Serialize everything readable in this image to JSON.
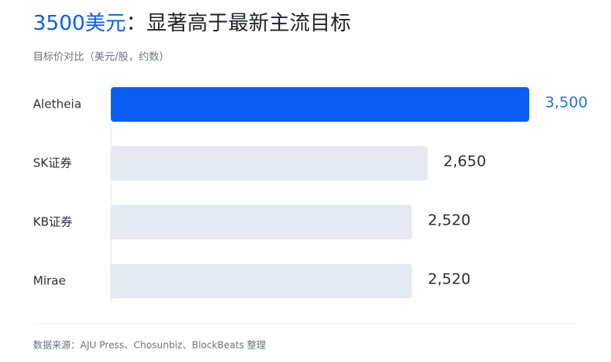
{
  "chart_data": {
    "type": "bar",
    "orientation": "horizontal",
    "title_highlight": "3500美元",
    "title": "：显著高于最新主流目标",
    "subtitle": "目标价对比（美元/股，约数）",
    "categories": [
      "Aletheia",
      "SK证券",
      "KB证券",
      "Mirae"
    ],
    "values": [
      3500,
      2650,
      2520,
      2520
    ],
    "value_labels": [
      "3,500",
      "2,650",
      "2,520",
      "2,520"
    ],
    "colors": [
      "#0a5ef5",
      "#e4e9f2",
      "#e4e9f2",
      "#e4e9f2"
    ],
    "label_colors": [
      "#2a6ee8",
      "#2b2f36",
      "#2b2f36",
      "#2b2f36"
    ],
    "title_highlight_color": "#0a5ef5",
    "source": "数据来源：AJU Press、Chosunbiz、BlockBeats 整理"
  }
}
